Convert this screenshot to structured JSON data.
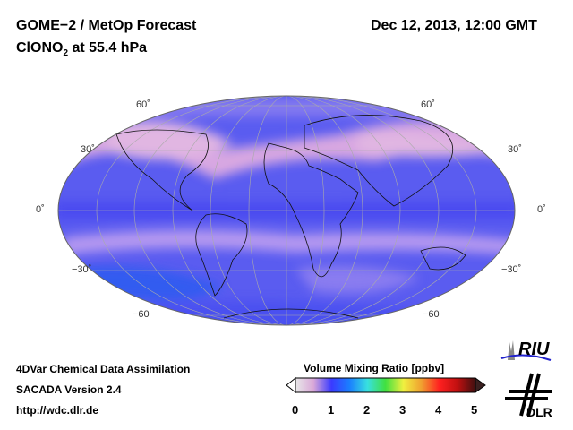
{
  "header": {
    "title": "GOME−2 / MetOp Forecast",
    "species": "ClONO",
    "species_sub": "2",
    "level": " at 55.4 hPa",
    "datetime": "Dec 12, 2013, 12:00 GMT"
  },
  "map": {
    "lat_labels_left": [
      "60˚",
      "30˚",
      "0˚",
      "−30˚",
      "−60"
    ],
    "lat_labels_right": [
      "60˚",
      "30˚",
      "0˚",
      "−30˚",
      "−60"
    ]
  },
  "footer": {
    "line1": "4DVar Chemical Data Assimilation",
    "line2": "SACADA Version 2.4",
    "line3": "http://wdc.dlr.de"
  },
  "colorbar": {
    "title": "Volume Mixing Ratio [ppbv]",
    "ticks": [
      "0",
      "1",
      "2",
      "3",
      "4",
      "5"
    ],
    "min": 0,
    "max": 5,
    "colors": [
      "#e8e8e8",
      "#d9a8d8",
      "#3a3aff",
      "#1a7fff",
      "#38e0e0",
      "#40e040",
      "#f0f040",
      "#f0a030",
      "#ff2020",
      "#c01010",
      "#401010"
    ]
  },
  "logos": {
    "riu": "RIU",
    "dlr": "DLR"
  }
}
